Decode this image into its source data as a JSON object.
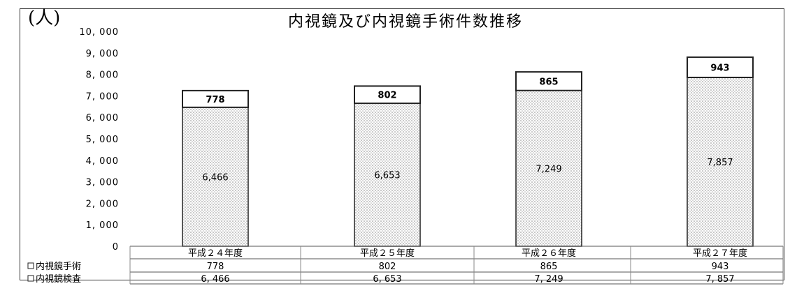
{
  "chart_data": {
    "type": "bar",
    "stacked": true,
    "unit_label": "(人)",
    "title": "内視鏡及び内視鏡手術件数推移",
    "categories": [
      "平成２４年度",
      "平成２５年度",
      "平成２６年度",
      "平成２７年度"
    ],
    "series": [
      {
        "name": "内視鏡検査",
        "values": [
          6466,
          6653,
          7249,
          7857
        ],
        "display_labels": [
          "6,466",
          "6,653",
          "7,249",
          "7,857"
        ],
        "table_labels": [
          "6, 466",
          "6, 653",
          "7, 249",
          "7, 857"
        ],
        "fill": "dotted"
      },
      {
        "name": "内視鏡手術",
        "values": [
          778,
          802,
          865,
          943
        ],
        "display_labels": [
          "778",
          "802",
          "865",
          "943"
        ],
        "table_labels": [
          "778",
          "802",
          "865",
          "943"
        ],
        "fill": "white"
      }
    ],
    "ylim": [
      0,
      10000
    ],
    "yticks": [
      0,
      1000,
      2000,
      3000,
      4000,
      5000,
      6000,
      7000,
      8000,
      9000,
      10000
    ],
    "ytick_labels": [
      "0",
      "1, 000",
      "2, 000",
      "3, 000",
      "4, 000",
      "5, 000",
      "6, 000",
      "7, 000",
      "8, 000",
      "9, 000",
      "10, 000"
    ],
    "legend": "data-table-below",
    "grid": false
  }
}
